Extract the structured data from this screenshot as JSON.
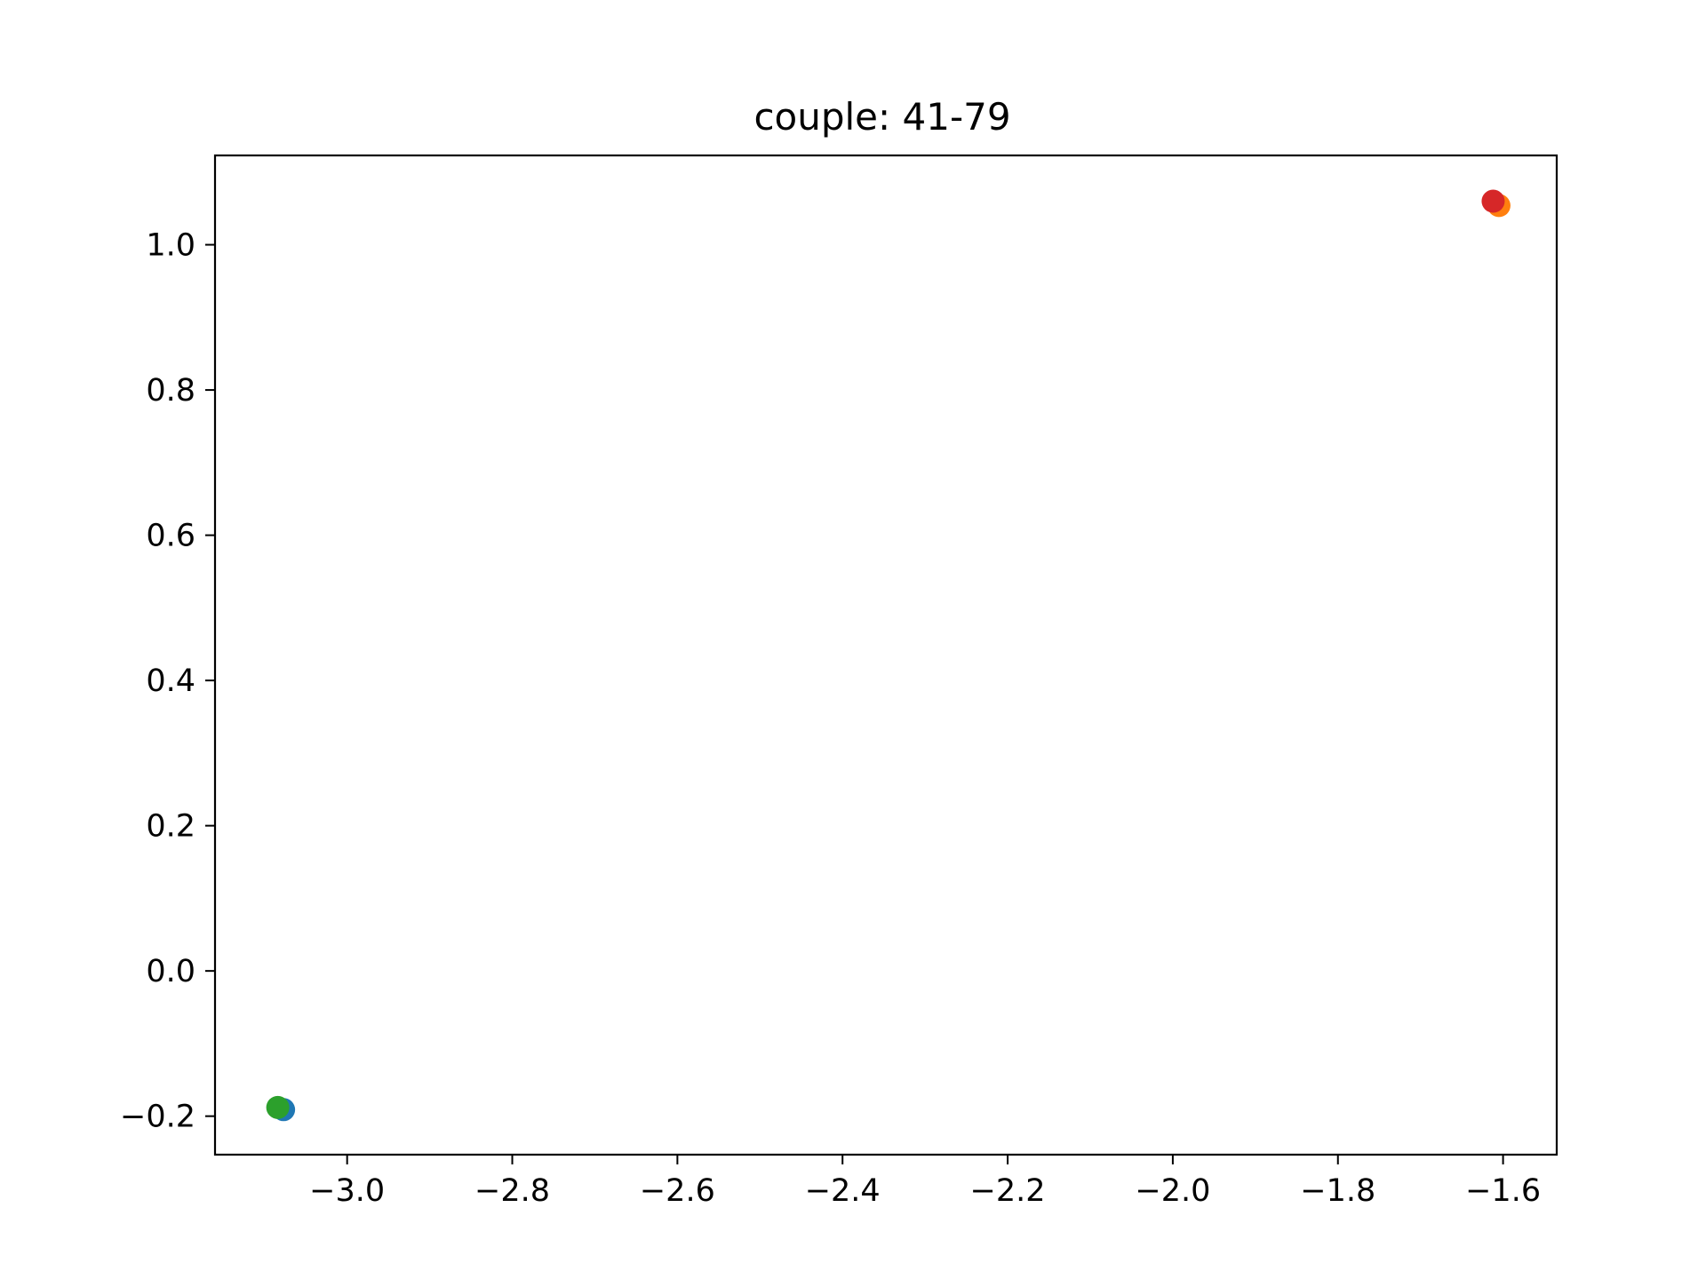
{
  "chart_data": {
    "type": "scatter",
    "title": "couple: 41-79",
    "xlabel": "",
    "ylabel": "",
    "xlim": [
      -3.16,
      -1.535
    ],
    "ylim": [
      -0.253,
      1.123
    ],
    "x_ticks": [
      -3.0,
      -2.8,
      -2.6,
      -2.4,
      -2.2,
      -2.0,
      -1.8,
      -1.6
    ],
    "x_tick_labels": [
      "−3.0",
      "−2.8",
      "−2.6",
      "−2.4",
      "−2.2",
      "−2.0",
      "−1.8",
      "−1.6"
    ],
    "y_ticks": [
      -0.2,
      0.0,
      0.2,
      0.4,
      0.6,
      0.8,
      1.0
    ],
    "y_tick_labels": [
      "−0.2",
      "0.0",
      "0.2",
      "0.4",
      "0.6",
      "0.8",
      "1.0"
    ],
    "grid": false,
    "legend": "none",
    "series": [
      {
        "color": "#1f77b4",
        "points": [
          {
            "x": -3.077,
            "y": -0.191
          }
        ]
      },
      {
        "color": "#ff7f0e",
        "points": [
          {
            "x": -1.605,
            "y": 1.054
          }
        ]
      },
      {
        "color": "#2ca02c",
        "points": [
          {
            "x": -3.084,
            "y": -0.188
          }
        ]
      },
      {
        "color": "#d62728",
        "points": [
          {
            "x": -1.612,
            "y": 1.06
          }
        ]
      }
    ]
  }
}
